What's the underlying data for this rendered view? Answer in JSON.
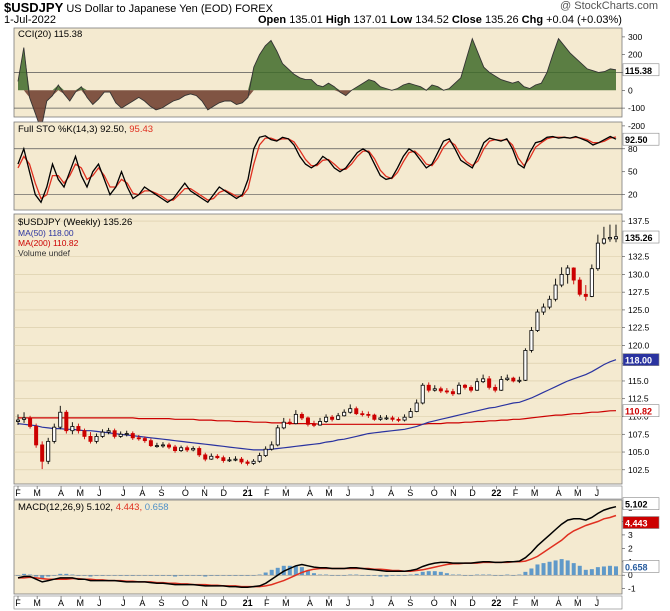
{
  "header": {
    "symbol": "$USDJPY",
    "name": "US Dollar to Japanese Yen (EOD)",
    "exchange": "FOREX",
    "date": "1-Jul-2022",
    "open_label": "Open",
    "open": "135.01",
    "high_label": "High",
    "high": "137.01",
    "low_label": "Low",
    "low": "134.52",
    "close_label": "Close",
    "close": "135.26",
    "chg_label": "Chg",
    "chg": "+0.04 (+0.03%)",
    "copyright": "@ StockCharts.com"
  },
  "colors": {
    "panel_bg": "#f4ead0",
    "up": "#000000",
    "down": "#cc0000",
    "ma50": "#2a33a0",
    "ma200": "#cc0000",
    "cci_fill": "#3f6b2a",
    "cci_neg_fill": "#6b3a2a",
    "sto_k": "#000000",
    "sto_d": "#e03020",
    "macd_line": "#000000",
    "signal_line": "#e03020",
    "hist": "#4f90c8"
  },
  "chart_data": [
    {
      "type": "line",
      "name": "cci",
      "title": "CCI(20) 115.38",
      "ylim": [
        -150,
        350
      ],
      "y_ticks": [
        "300",
        "200",
        "100",
        "0",
        "-100",
        "-200"
      ],
      "ref_lines": [
        100,
        -100
      ],
      "current_label": "115.38",
      "current_value": 115.38,
      "values": [
        50,
        240,
        -40,
        -130,
        -220,
        -60,
        -30,
        30,
        -20,
        -60,
        -10,
        20,
        -40,
        -80,
        -50,
        -10,
        -10,
        -70,
        -100,
        -80,
        -60,
        -40,
        -60,
        -90,
        -110,
        -100,
        -80,
        -60,
        -50,
        -30,
        -20,
        -30,
        -60,
        -110,
        -90,
        -70,
        -60,
        -60,
        -80,
        -70,
        -40,
        130,
        200,
        250,
        280,
        220,
        150,
        120,
        90,
        70,
        60,
        60,
        30,
        20,
        40,
        20,
        -10,
        -30,
        0,
        20,
        40,
        60,
        50,
        20,
        10,
        0,
        10,
        30,
        40,
        30,
        20,
        0,
        30,
        20,
        0,
        10,
        40,
        70,
        180,
        290,
        210,
        130,
        100,
        80,
        60,
        50,
        40,
        50,
        20,
        10,
        30,
        40,
        100,
        200,
        290,
        250,
        210,
        180,
        150,
        120,
        110,
        100,
        105,
        120,
        115.38
      ]
    },
    {
      "type": "line",
      "name": "full-sto",
      "title_k": "Full STO %K(14,3) 92.50,",
      "title_d": "95.43",
      "ylim": [
        0,
        115
      ],
      "y_ticks": [
        "80",
        "50",
        "20"
      ],
      "ref_lines": [
        80,
        20
      ],
      "current_label": "92.50",
      "k": [
        60,
        80,
        50,
        20,
        10,
        30,
        60,
        40,
        30,
        50,
        70,
        45,
        30,
        50,
        60,
        40,
        20,
        30,
        50,
        30,
        15,
        20,
        30,
        25,
        20,
        15,
        10,
        15,
        25,
        35,
        25,
        20,
        15,
        10,
        20,
        30,
        25,
        20,
        15,
        20,
        40,
        80,
        95,
        97,
        92,
        90,
        95,
        93,
        85,
        70,
        60,
        55,
        60,
        70,
        65,
        55,
        50,
        55,
        65,
        75,
        80,
        75,
        60,
        45,
        40,
        42,
        55,
        70,
        80,
        75,
        65,
        55,
        60,
        75,
        90,
        93,
        80,
        65,
        60,
        55,
        70,
        88,
        94,
        92,
        90,
        93,
        80,
        60,
        55,
        75,
        88,
        90,
        95,
        96,
        94,
        95,
        94,
        96,
        93,
        90,
        85,
        88,
        92,
        96,
        92.5
      ],
      "d": [
        55,
        70,
        60,
        35,
        15,
        20,
        45,
        45,
        35,
        45,
        60,
        55,
        40,
        45,
        55,
        45,
        30,
        30,
        40,
        35,
        22,
        20,
        25,
        25,
        22,
        18,
        13,
        13,
        20,
        28,
        28,
        23,
        18,
        13,
        15,
        23,
        26,
        22,
        18,
        18,
        28,
        60,
        85,
        94,
        94,
        91,
        93,
        93,
        89,
        78,
        66,
        58,
        58,
        65,
        66,
        60,
        53,
        53,
        60,
        70,
        77,
        77,
        67,
        52,
        44,
        41,
        49,
        63,
        75,
        77,
        70,
        60,
        58,
        68,
        82,
        90,
        85,
        72,
        63,
        58,
        64,
        80,
        90,
        92,
        91,
        92,
        85,
        68,
        58,
        68,
        82,
        88,
        93,
        95,
        95,
        95,
        94,
        95,
        94,
        92,
        88,
        88,
        90,
        94,
        95.43
      ]
    },
    {
      "type": "candlestick",
      "name": "price",
      "title": "$USDJPY (Weekly) 135.26",
      "ma50_label": "MA(50) 118.00",
      "ma200_label": "MA(200) 110.82",
      "volume_label": "Volume undef",
      "ylim": [
        100.5,
        138.5
      ],
      "y_ticks": [
        "137.5",
        "132.5",
        "130.0",
        "127.5",
        "125.0",
        "122.5",
        "120.0",
        "117.5",
        "115.0",
        "112.5",
        "110.0",
        "107.5",
        "105.0",
        "102.5"
      ],
      "last_label": "135.26",
      "last_value": 135.26,
      "ma50_tag": "118.00",
      "ma50_value": 118.0,
      "ma200_tag": "110.82",
      "ma200_value": 110.82,
      "close": [
        109.5,
        109.8,
        108.6,
        106.0,
        103.7,
        106.5,
        108.5,
        110.6,
        108.0,
        108.6,
        108.0,
        107.2,
        106.5,
        107.2,
        107.8,
        108.0,
        107.2,
        107.5,
        107.6,
        107.0,
        106.9,
        106.6,
        105.9,
        105.9,
        106.0,
        105.7,
        105.2,
        105.6,
        105.3,
        105.5,
        104.6,
        104.0,
        104.4,
        104.2,
        103.8,
        103.9,
        104.0,
        103.6,
        103.4,
        103.7,
        104.5,
        105.4,
        106.0,
        108.4,
        109.2,
        109.0,
        110.3,
        109.8,
        108.9,
        108.8,
        109.3,
        109.9,
        109.6,
        110.1,
        110.6,
        111.1,
        110.4,
        110.3,
        110.2,
        109.6,
        109.8,
        109.8,
        109.6,
        109.5,
        109.9,
        110.7,
        111.9,
        114.4,
        113.7,
        113.9,
        113.6,
        113.5,
        113.2,
        114.4,
        114.1,
        113.7,
        114.9,
        115.3,
        114.1,
        113.7,
        115.2,
        115.4,
        115.0,
        115.1,
        119.3,
        122.1,
        124.7,
        125.4,
        126.5,
        128.5,
        130.0,
        130.9,
        129.2,
        127.2,
        126.9,
        130.8,
        134.4,
        135.0,
        135.2,
        135.3
      ],
      "open": [
        109.3,
        109.6,
        109.8,
        108.6,
        106.0,
        103.7,
        106.5,
        108.5,
        110.6,
        108.0,
        108.6,
        108.0,
        107.2,
        106.5,
        107.2,
        107.8,
        108.0,
        107.2,
        107.5,
        107.6,
        107.0,
        106.9,
        106.6,
        105.9,
        105.9,
        106.0,
        105.7,
        105.2,
        105.6,
        105.3,
        105.5,
        104.6,
        104.0,
        104.4,
        104.2,
        103.8,
        103.9,
        104.0,
        103.6,
        103.4,
        103.7,
        104.5,
        105.4,
        106.0,
        108.4,
        109.2,
        109.0,
        110.3,
        109.8,
        108.9,
        108.8,
        109.3,
        109.9,
        109.6,
        110.1,
        110.6,
        111.1,
        110.4,
        110.3,
        110.2,
        109.6,
        109.8,
        109.8,
        109.6,
        109.5,
        109.9,
        110.7,
        111.9,
        114.4,
        113.7,
        113.9,
        113.6,
        113.5,
        113.2,
        114.4,
        114.1,
        113.7,
        114.9,
        115.3,
        114.1,
        113.7,
        115.2,
        115.4,
        115.0,
        115.1,
        119.3,
        122.1,
        124.7,
        125.4,
        126.5,
        128.5,
        130.0,
        130.9,
        129.2,
        127.2,
        126.9,
        130.8,
        134.4,
        135.0,
        135.01
      ],
      "high": [
        110.3,
        110.6,
        110.1,
        109.0,
        106.5,
        107.0,
        109.0,
        111.5,
        110.9,
        109.2,
        109.0,
        108.3,
        107.8,
        107.6,
        108.2,
        108.4,
        108.3,
        107.9,
        108.0,
        107.9,
        107.4,
        107.2,
        106.9,
        106.3,
        106.4,
        106.3,
        106.0,
        105.9,
        105.9,
        105.8,
        105.8,
        104.9,
        104.8,
        104.7,
        104.5,
        104.3,
        104.4,
        104.3,
        103.9,
        104.0,
        104.9,
        105.8,
        106.5,
        108.8,
        109.8,
        109.7,
        110.9,
        110.6,
        110.0,
        109.4,
        109.8,
        110.3,
        110.2,
        110.5,
        111.0,
        111.7,
        111.4,
        110.8,
        110.7,
        110.4,
        110.2,
        110.2,
        110.1,
        109.9,
        110.3,
        111.2,
        112.4,
        114.7,
        114.8,
        114.4,
        114.2,
        114.0,
        113.9,
        114.8,
        114.6,
        114.4,
        115.4,
        115.9,
        115.7,
        114.5,
        115.7,
        115.9,
        115.6,
        115.6,
        119.6,
        122.6,
        125.1,
        125.9,
        127.0,
        129.4,
        131.0,
        131.3,
        131.0,
        129.6,
        128.5,
        131.4,
        135.6,
        136.7,
        137.0,
        137.01
      ],
      "low": [
        108.8,
        109.1,
        108.3,
        105.6,
        102.6,
        103.3,
        106.2,
        108.2,
        107.6,
        107.5,
        107.6,
        106.8,
        106.2,
        106.2,
        107.0,
        107.5,
        106.9,
        107.0,
        107.2,
        106.7,
        106.6,
        106.3,
        105.7,
        105.6,
        105.6,
        105.4,
        104.9,
        105.0,
        105.0,
        105.1,
        104.3,
        103.7,
        103.9,
        104.0,
        103.5,
        103.6,
        103.7,
        103.3,
        103.1,
        103.2,
        103.5,
        104.3,
        105.2,
        105.8,
        108.2,
        108.8,
        108.9,
        109.5,
        108.6,
        108.5,
        108.7,
        109.1,
        109.3,
        109.5,
        110.0,
        110.4,
        110.2,
        110.0,
        109.8,
        109.4,
        109.4,
        109.5,
        109.3,
        109.2,
        109.3,
        109.8,
        110.6,
        111.7,
        113.4,
        113.5,
        113.3,
        113.2,
        112.9,
        113.1,
        113.8,
        113.4,
        113.6,
        114.7,
        113.8,
        113.4,
        113.6,
        115.0,
        114.8,
        114.7,
        115.0,
        119.0,
        121.9,
        124.3,
        125.1,
        126.2,
        128.2,
        128.7,
        128.6,
        126.9,
        126.3,
        126.8,
        130.5,
        134.2,
        134.6,
        134.52
      ],
      "ma50": [
        109.0,
        108.9,
        108.8,
        108.7,
        108.5,
        108.4,
        108.3,
        108.3,
        108.2,
        108.2,
        108.1,
        108.0,
        108.0,
        107.9,
        107.8,
        107.7,
        107.6,
        107.5,
        107.4,
        107.3,
        107.2,
        107.1,
        107.0,
        106.9,
        106.8,
        106.7,
        106.6,
        106.5,
        106.4,
        106.3,
        106.2,
        106.1,
        106.0,
        105.9,
        105.8,
        105.7,
        105.6,
        105.5,
        105.4,
        105.3,
        105.3,
        105.3,
        105.4,
        105.5,
        105.6,
        105.7,
        105.8,
        105.9,
        106.0,
        106.1,
        106.2,
        106.4,
        106.5,
        106.7,
        106.8,
        107.0,
        107.2,
        107.4,
        107.6,
        107.7,
        107.8,
        107.9,
        108.0,
        108.1,
        108.2,
        108.4,
        108.6,
        108.9,
        109.2,
        109.4,
        109.6,
        109.8,
        110.0,
        110.2,
        110.4,
        110.6,
        110.8,
        111.0,
        111.2,
        111.3,
        111.5,
        111.7,
        111.9,
        112.0,
        112.3,
        112.6,
        113.0,
        113.4,
        113.8,
        114.2,
        114.6,
        115.0,
        115.3,
        115.6,
        115.9,
        116.3,
        116.8,
        117.3,
        117.7,
        118.0
      ],
      "ma200": [
        109.8,
        109.8,
        109.8,
        109.8,
        109.8,
        109.8,
        109.8,
        109.8,
        109.8,
        109.8,
        109.8,
        109.8,
        109.8,
        109.8,
        109.8,
        109.8,
        109.8,
        109.8,
        109.8,
        109.8,
        109.7,
        109.7,
        109.7,
        109.7,
        109.7,
        109.7,
        109.6,
        109.6,
        109.6,
        109.6,
        109.5,
        109.5,
        109.5,
        109.4,
        109.4,
        109.4,
        109.3,
        109.3,
        109.3,
        109.2,
        109.2,
        109.2,
        109.1,
        109.1,
        109.1,
        109.0,
        109.0,
        109.0,
        109.0,
        109.0,
        108.9,
        108.9,
        108.9,
        108.9,
        108.9,
        108.9,
        108.9,
        108.9,
        108.9,
        108.9,
        108.9,
        108.9,
        108.9,
        108.9,
        108.9,
        108.9,
        108.9,
        108.9,
        109.0,
        109.0,
        109.0,
        109.1,
        109.1,
        109.1,
        109.2,
        109.2,
        109.3,
        109.3,
        109.4,
        109.4,
        109.5,
        109.5,
        109.6,
        109.6,
        109.7,
        109.8,
        109.9,
        110.0,
        110.1,
        110.2,
        110.2,
        110.3,
        110.4,
        110.4,
        110.5,
        110.6,
        110.6,
        110.7,
        110.8,
        110.82
      ]
    },
    {
      "type": "line+bar",
      "name": "macd",
      "title_main": "MACD(12,26,9) 5.102,",
      "title_signal": "4.443,",
      "title_hist": "0.658",
      "ylim": [
        -1.4,
        5.6
      ],
      "y_ticks": [
        "5",
        "4",
        "3",
        "2",
        "1",
        "0",
        "-1"
      ],
      "macd_label": "5.102",
      "macd_value": 5.102,
      "signal_label": "4.443",
      "signal_value": 4.443,
      "hist_label": "0.658",
      "hist_value": 0.658,
      "macd": [
        -0.2,
        -0.1,
        -0.1,
        -0.3,
        -0.5,
        -0.4,
        -0.3,
        -0.2,
        -0.2,
        -0.2,
        -0.3,
        -0.3,
        -0.4,
        -0.4,
        -0.4,
        -0.4,
        -0.4,
        -0.45,
        -0.5,
        -0.5,
        -0.5,
        -0.5,
        -0.55,
        -0.6,
        -0.6,
        -0.65,
        -0.7,
        -0.7,
        -0.7,
        -0.7,
        -0.75,
        -0.8,
        -0.8,
        -0.8,
        -0.8,
        -0.85,
        -0.85,
        -0.9,
        -0.9,
        -0.85,
        -0.8,
        -0.6,
        -0.3,
        0.0,
        0.3,
        0.5,
        0.7,
        0.8,
        0.7,
        0.6,
        0.55,
        0.55,
        0.5,
        0.5,
        0.5,
        0.55,
        0.55,
        0.5,
        0.45,
        0.4,
        0.35,
        0.3,
        0.3,
        0.3,
        0.3,
        0.35,
        0.45,
        0.65,
        0.8,
        0.9,
        0.95,
        0.95,
        0.9,
        0.9,
        0.9,
        0.9,
        0.95,
        1.0,
        1.0,
        0.95,
        0.95,
        1.0,
        1.0,
        1.05,
        1.3,
        1.7,
        2.2,
        2.6,
        3.0,
        3.4,
        3.8,
        4.1,
        4.2,
        4.2,
        4.1,
        4.3,
        4.6,
        4.85,
        5.0,
        5.102
      ],
      "signal": [
        -0.2,
        -0.2,
        -0.15,
        -0.2,
        -0.25,
        -0.3,
        -0.3,
        -0.3,
        -0.3,
        -0.25,
        -0.25,
        -0.3,
        -0.3,
        -0.35,
        -0.35,
        -0.4,
        -0.4,
        -0.4,
        -0.45,
        -0.45,
        -0.5,
        -0.5,
        -0.5,
        -0.55,
        -0.55,
        -0.6,
        -0.6,
        -0.65,
        -0.65,
        -0.7,
        -0.7,
        -0.7,
        -0.75,
        -0.75,
        -0.8,
        -0.8,
        -0.8,
        -0.85,
        -0.85,
        -0.85,
        -0.85,
        -0.8,
        -0.7,
        -0.55,
        -0.4,
        -0.2,
        0.0,
        0.2,
        0.35,
        0.45,
        0.5,
        0.5,
        0.5,
        0.5,
        0.5,
        0.5,
        0.5,
        0.5,
        0.5,
        0.45,
        0.45,
        0.4,
        0.35,
        0.35,
        0.3,
        0.3,
        0.35,
        0.4,
        0.5,
        0.6,
        0.7,
        0.8,
        0.85,
        0.85,
        0.9,
        0.9,
        0.9,
        0.95,
        0.95,
        0.95,
        0.95,
        0.95,
        1.0,
        1.0,
        1.05,
        1.2,
        1.4,
        1.7,
        2.0,
        2.3,
        2.6,
        3.0,
        3.3,
        3.5,
        3.7,
        3.85,
        4.0,
        4.2,
        4.3,
        4.443
      ]
    }
  ],
  "x_labels": [
    "F",
    "M",
    "A",
    "M",
    "J",
    "J",
    "A",
    "S",
    "O",
    "N",
    "D",
    "21",
    "F",
    "M",
    "A",
    "M",
    "J",
    "J",
    "A",
    "S",
    "O",
    "N",
    "D",
    "22",
    "F",
    "M",
    "A",
    "M",
    "J"
  ],
  "x_label_weeks": [
    0,
    4,
    9,
    13,
    17,
    22,
    26,
    30,
    35,
    39,
    43,
    48,
    52,
    56,
    61,
    65,
    69,
    74,
    78,
    82,
    87,
    91,
    95,
    100,
    104,
    108,
    113,
    117,
    121
  ]
}
